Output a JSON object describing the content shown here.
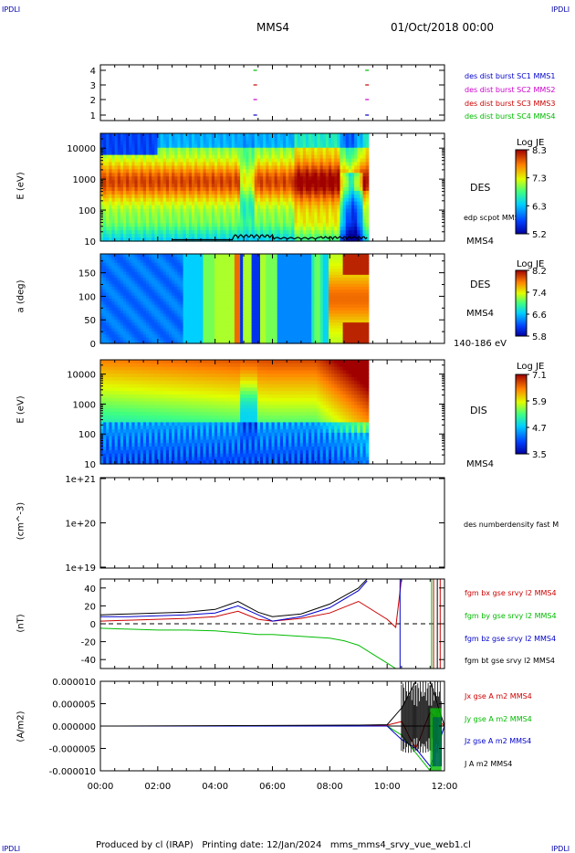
{
  "corners": {
    "tl": "IPDLI",
    "tr": "IPDLI",
    "bl": "IPDLI",
    "br": "IPDLI"
  },
  "header": {
    "spacecraft": "MMS4",
    "date": "01/Oct/2018 00:00"
  },
  "footer": {
    "text": "Produced by cl (IRAP)   Printing date: 12/Jan/2024   mms_mms4_srvy_vue_web1.cl"
  },
  "colors": {
    "bx": "#cc0000",
    "by": "#00bb00",
    "bz": "#0000cc",
    "bt": "#000000",
    "s1": "#0000cc",
    "s2": "#cc00cc",
    "s3": "#cc0000",
    "s4": "#00bb00"
  },
  "panels": {
    "burst": {
      "labels": [
        "des dist burst SC1 MMS1",
        "des dist burst SC2 MMS2",
        "des dist burst SC3 MMS3",
        "des dist burst SC4 MMS4"
      ],
      "yticks": [
        "4",
        "3",
        "2",
        "1"
      ]
    },
    "des_e": {
      "ylabel": "E (eV)",
      "yticks": [
        "10000",
        "1000",
        "100",
        "10"
      ],
      "species": "DES",
      "overlay": "edp scpot MMS4",
      "sc": "MMS4",
      "cb_title": "Log JE",
      "cb_ticks": [
        "8.3",
        "7.3",
        "6.3",
        "5.2"
      ]
    },
    "pad": {
      "ylabel": "a (deg)",
      "yticks": [
        "150",
        "100",
        "50",
        "0"
      ],
      "species": "DES",
      "sc": "MMS4",
      "range": "140-186 eV",
      "cb_title": "Log JE",
      "cb_ticks": [
        "8.2",
        "7.4",
        "6.6",
        "5.8"
      ]
    },
    "dis_e": {
      "ylabel": "E (eV)",
      "yticks": [
        "10000",
        "1000",
        "100",
        "10"
      ],
      "species": "DIS",
      "sc": "MMS4",
      "cb_title": "Log JE",
      "cb_ticks": [
        "7.1",
        "5.9",
        "4.7",
        "3.5"
      ]
    },
    "dens": {
      "ylabel": "(cm^-3)",
      "yticks": [
        "1e+21",
        "1e+20",
        "1e+19"
      ],
      "label": "des numberdensity fast M"
    },
    "fgm": {
      "ylabel": "(nT)",
      "yticks": [
        "40",
        "20",
        "0",
        "-20",
        "-40"
      ],
      "labels": [
        "fgm bx gse srvy l2 MMS4",
        "fgm by gse srvy l2 MMS4",
        "fgm bz gse srvy l2 MMS4",
        "fgm bt gse srvy l2 MMS4"
      ]
    },
    "j": {
      "ylabel": "(A/m2)",
      "yticks": [
        "0.000010",
        "0.000005",
        "0.000000",
        "-0.000005",
        "-0.000010"
      ],
      "labels": [
        "Jx gse A m2 MMS4",
        "Jy gse A m2 MMS4",
        "Jz gse A m2 MMS4",
        "J A m2 MMS4"
      ]
    }
  },
  "chart_data": [
    {
      "type": "scatter",
      "title": "",
      "ylabel": "",
      "ylim": [
        0.5,
        4.5
      ],
      "x_range": [
        "00:00",
        "12:00"
      ],
      "series": [
        {
          "name": "des dist burst SC1 MMS1",
          "x": [
            5.4,
            9.3
          ],
          "y": [
            1,
            1
          ]
        },
        {
          "name": "des dist burst SC2 MMS2",
          "x": [
            5.4,
            9.3
          ],
          "y": [
            2,
            2
          ]
        },
        {
          "name": "des dist burst SC3 MMS3",
          "x": [
            5.4,
            9.3
          ],
          "y": [
            3,
            3
          ]
        },
        {
          "name": "des dist burst SC4 MMS4",
          "x": [
            5.4,
            9.3
          ],
          "y": [
            4,
            4
          ]
        }
      ]
    },
    {
      "type": "heatmap",
      "title": "DES",
      "ylabel": "E (eV)",
      "y_scale": "log",
      "ylim": [
        10,
        30000
      ],
      "data_x_range_h": [
        0,
        9.35
      ],
      "colorbar": {
        "title": "Log JE",
        "range": [
          5.2,
          8.3
        ]
      }
    },
    {
      "type": "heatmap",
      "title": "DES",
      "ylabel": "a (deg)",
      "ylim": [
        0,
        180
      ],
      "data_x_range_h": [
        0,
        9.35
      ],
      "energy_range": "140-186 eV",
      "colorbar": {
        "title": "Log JE",
        "range": [
          5.8,
          8.2
        ]
      }
    },
    {
      "type": "heatmap",
      "title": "DIS",
      "ylabel": "E (eV)",
      "y_scale": "log",
      "ylim": [
        10,
        30000
      ],
      "data_x_range_h": [
        0,
        9.35
      ],
      "colorbar": {
        "title": "Log JE",
        "range": [
          3.5,
          7.1
        ]
      }
    },
    {
      "type": "line",
      "title": "",
      "ylabel": "(cm^-3)",
      "y_scale": "log",
      "ylim": [
        1e+19,
        1e+21
      ],
      "series": []
    },
    {
      "type": "line",
      "ylabel": "(nT)",
      "ylim": [
        -50,
        50
      ],
      "x_unit": "hours",
      "series": [
        {
          "name": "fgm bx gse srvy l2 MMS4",
          "x": [
            0,
            1,
            2,
            3,
            4,
            4.8,
            5.5,
            6,
            7,
            8,
            9,
            10,
            10.3,
            10.5
          ],
          "y": [
            3,
            4,
            5,
            6,
            8,
            14,
            5,
            3,
            6,
            12,
            25,
            5,
            -4,
            50
          ]
        },
        {
          "name": "fgm by gse srvy l2 MMS4",
          "x": [
            0,
            1,
            2,
            3,
            4,
            4.8,
            5.5,
            6,
            7,
            8,
            8.5,
            9,
            9.5,
            10,
            10.3
          ],
          "y": [
            -5,
            -6,
            -7,
            -7,
            -8,
            -10,
            -12,
            -12,
            -14,
            -16,
            -19,
            -24,
            -34,
            -44,
            -50
          ]
        },
        {
          "name": "fgm bz gse srvy l2 MMS4",
          "x": [
            0,
            1,
            2,
            3,
            4,
            4.8,
            5.5,
            6,
            7,
            8,
            9,
            9.3
          ],
          "y": [
            8,
            8,
            9,
            10,
            12,
            20,
            10,
            3,
            8,
            18,
            37,
            48
          ]
        },
        {
          "name": "fgm bt gse srvy l2 MMS4",
          "x": [
            0,
            1,
            2,
            3,
            4,
            4.8,
            5.5,
            6,
            7,
            8,
            9,
            9.3
          ],
          "y": [
            10,
            11,
            12,
            13,
            16,
            25,
            13,
            8,
            11,
            22,
            40,
            50
          ]
        }
      ]
    },
    {
      "type": "line",
      "ylabel": "(A/m2)",
      "ylim": [
        -1e-05,
        1e-05
      ],
      "x_unit": "hours",
      "series": [
        {
          "name": "Jx gse A m2 MMS4",
          "x": [
            0,
            5,
            9,
            10,
            10.5,
            11,
            11.5,
            12
          ],
          "y": [
            0,
            0,
            0,
            2e-07,
            1e-06,
            -5e-06,
            3e-06,
            0
          ]
        },
        {
          "name": "Jy gse A m2 MMS4",
          "x": [
            0,
            5,
            9,
            10,
            10.5,
            11,
            11.5,
            12
          ],
          "y": [
            0,
            0,
            0,
            0,
            -2e-06,
            -6e-06,
            -1e-05,
            0
          ]
        },
        {
          "name": "Jz gse A m2 MMS4",
          "x": [
            0,
            5,
            9,
            10,
            10.5,
            11,
            11.5,
            12
          ],
          "y": [
            0,
            0,
            0,
            0,
            -3e-06,
            -5e-06,
            -9e-06,
            0
          ]
        },
        {
          "name": "J A m2 MMS4",
          "x": [
            0,
            5,
            9,
            10,
            10.5,
            11,
            11.5,
            12
          ],
          "y": [
            0,
            1e-07,
            2e-07,
            3e-07,
            4e-06,
            1e-05,
            1e-05,
            0
          ]
        }
      ]
    }
  ],
  "xaxis": {
    "ticks": [
      "00:00",
      "02:00",
      "04:00",
      "06:00",
      "08:00",
      "10:00",
      "12:00"
    ]
  }
}
